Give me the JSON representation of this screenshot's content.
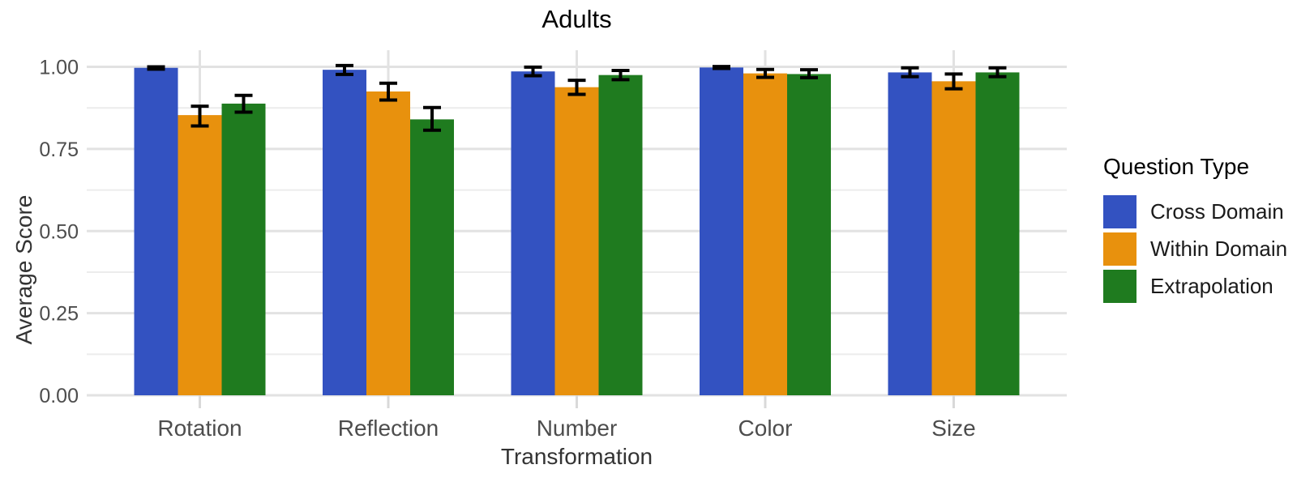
{
  "chart_data": {
    "type": "bar",
    "title": "Adults",
    "xlabel": "Transformation",
    "ylabel": "Average Score",
    "legend_title": "Question Type",
    "legend_position": "right",
    "categories": [
      "Rotation",
      "Reflection",
      "Number",
      "Color",
      "Size"
    ],
    "series": [
      {
        "name": "Cross Domain",
        "color": "#3352C1",
        "values": [
          0.997,
          0.991,
          0.986,
          0.998,
          0.983
        ],
        "error_low": [
          0.993,
          0.977,
          0.973,
          0.995,
          0.97
        ],
        "error_high": [
          1.0,
          1.004,
          0.999,
          1.001,
          0.997
        ]
      },
      {
        "name": "Within Domain",
        "color": "#E8910D",
        "values": [
          0.853,
          0.925,
          0.938,
          0.98,
          0.956
        ],
        "error_low": [
          0.82,
          0.899,
          0.916,
          0.968,
          0.933
        ],
        "error_high": [
          0.88,
          0.95,
          0.959,
          0.992,
          0.978
        ]
      },
      {
        "name": "Extrapolation",
        "color": "#1F7B1F",
        "values": [
          0.888,
          0.84,
          0.975,
          0.978,
          0.983
        ],
        "error_low": [
          0.862,
          0.807,
          0.961,
          0.967,
          0.97
        ],
        "error_high": [
          0.913,
          0.876,
          0.989,
          0.991,
          0.997
        ]
      }
    ],
    "error_bar_color": "#000000",
    "ylim": [
      0,
      1.05
    ],
    "y_ticks": [
      0.0,
      0.25,
      0.5,
      0.75,
      1.0
    ],
    "y_minor_ticks": [
      0.125,
      0.375,
      0.625,
      0.875
    ],
    "grid": true,
    "grid_major_color": "#E2E2E2",
    "grid_minor_color": "#ECECEC",
    "axis_tick_color": "#D9D9D9",
    "tick_label_color": "#4D4D4D"
  }
}
